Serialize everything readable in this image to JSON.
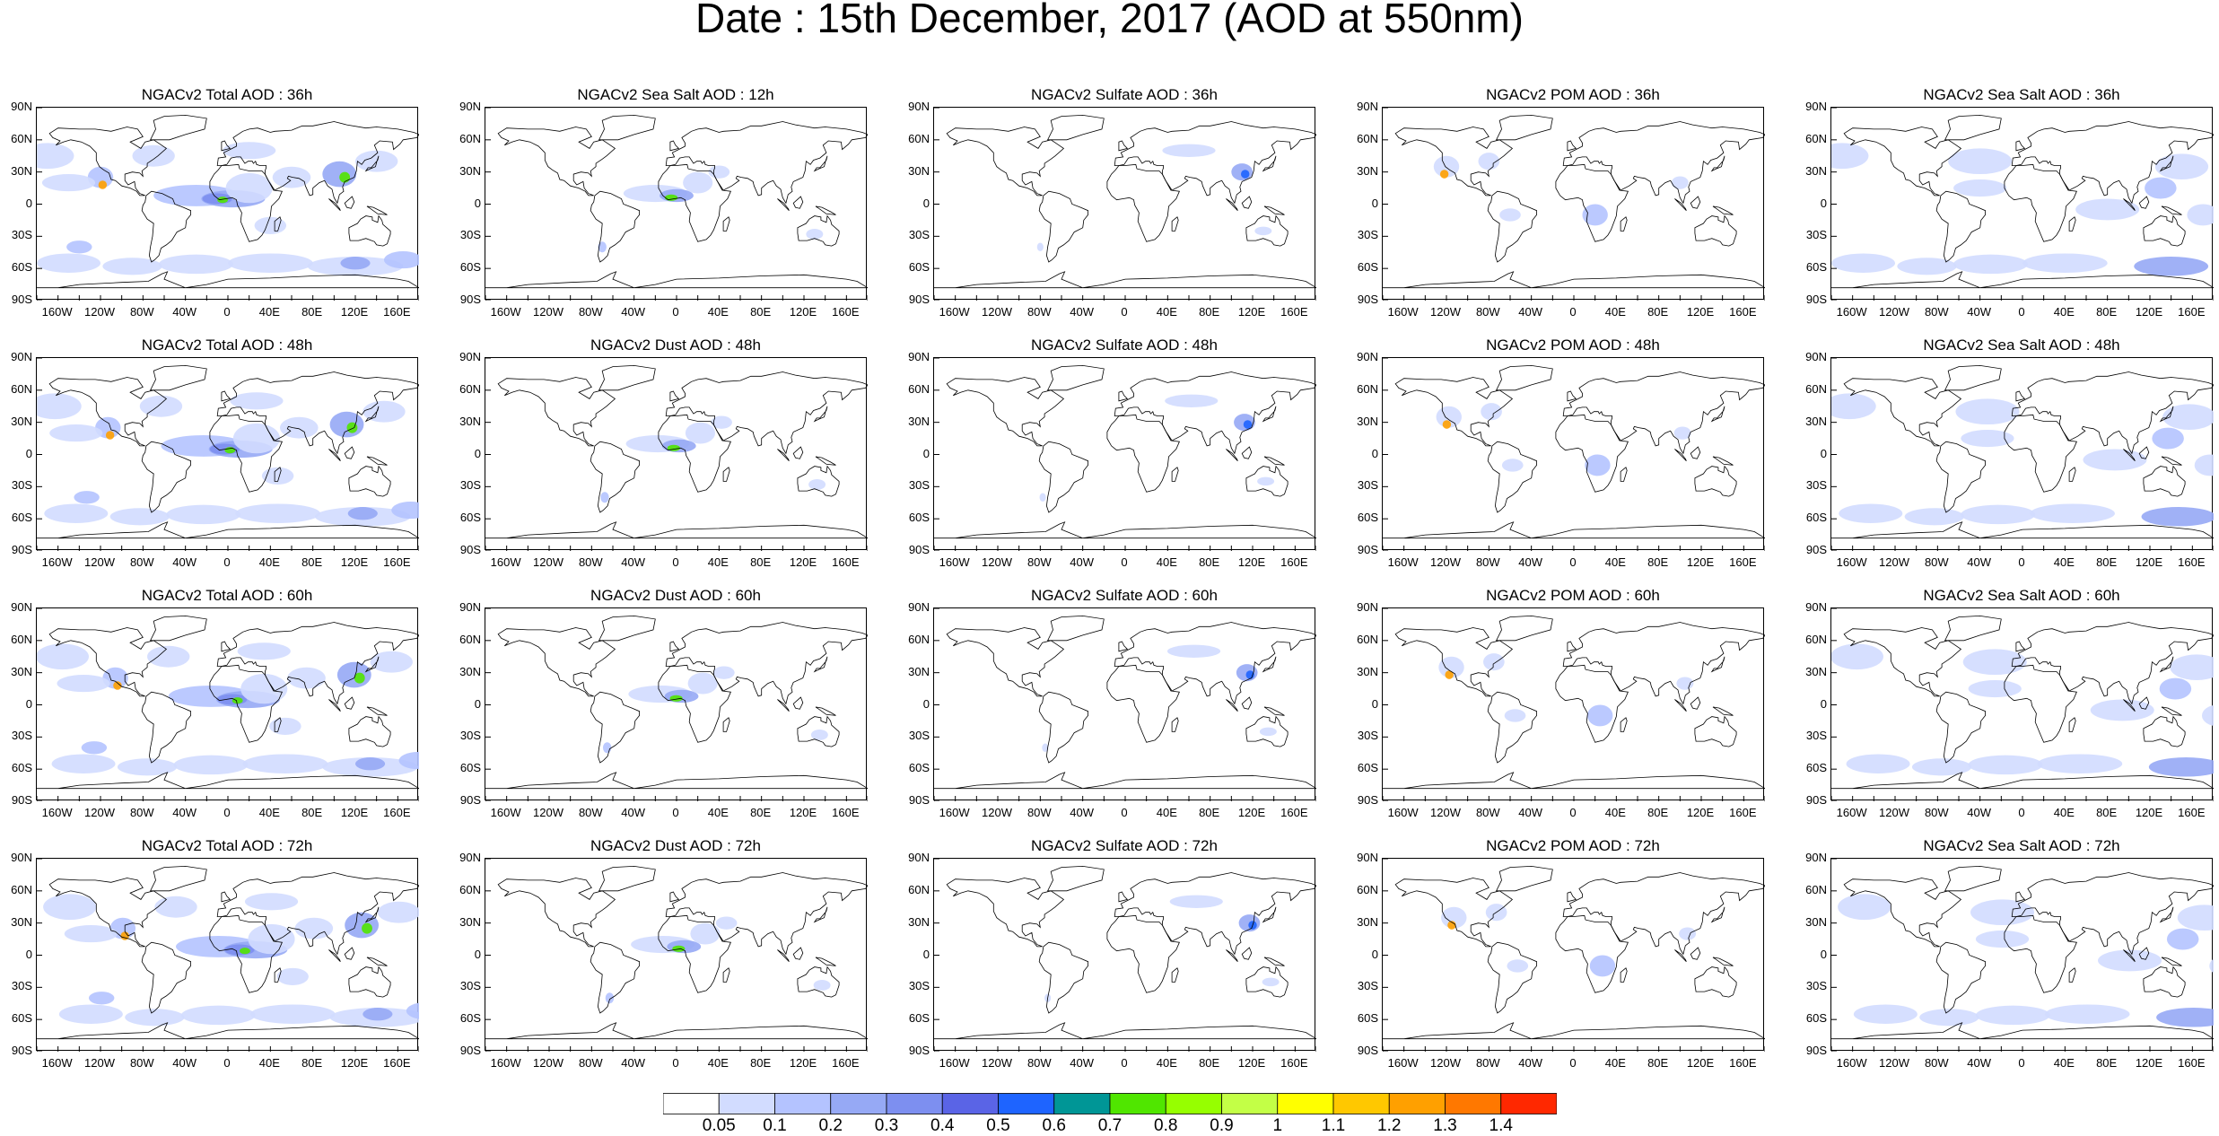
{
  "title": "Date : 15th December, 2017 (AOD at 550nm)",
  "panels": [
    [
      "NGACv2 Total AOD : 36h",
      "NGACv2 Sea Salt  AOD : 12h",
      "NGACv2 Sulfate AOD : 36h",
      "NGACv2 POM AOD : 36h",
      "NGACv2 Sea Salt AOD : 36h"
    ],
    [
      "NGACv2 Total AOD : 48h",
      "NGACv2 Dust AOD : 48h",
      "NGACv2 Sulfate AOD : 48h",
      "NGACv2 POM AOD : 48h",
      "NGACv2 Sea Salt AOD : 48h"
    ],
    [
      "NGACv2 Total AOD : 60h",
      "NGACv2 Dust AOD : 60h",
      "NGACv2 Sulfate AOD : 60h",
      "NGACv2 POM AOD : 60h",
      "NGACv2 Sea Salt AOD : 60h"
    ],
    [
      "NGACv2 Total AOD : 72h",
      "NGACv2 Dust AOD : 72h",
      "NGACv2 Sulfate AOD : 72h",
      "NGACv2 POM AOD : 72h",
      "NGACv2 Sea Salt  AOD : 72h"
    ]
  ],
  "map_axes": {
    "lat_ticks": [
      "90N",
      "60N",
      "30N",
      "0",
      "30S",
      "60S",
      "90S"
    ],
    "lon_ticks": [
      "160W",
      "120W",
      "80W",
      "40W",
      "0",
      "40E",
      "80E",
      "120E",
      "160E"
    ]
  },
  "colorbar": {
    "labels": [
      "0.05",
      "0.1",
      "0.2",
      "0.3",
      "0.4",
      "0.5",
      "0.6",
      "0.7",
      "0.8",
      "0.9",
      "1",
      "1.1",
      "1.2",
      "1.3",
      "1.4"
    ],
    "colors": [
      "#ffffff",
      "#d2dcff",
      "#b4c3ff",
      "#96a9f5",
      "#7d8ff0",
      "#5a64e6",
      "#1e64ff",
      "#009696",
      "#50e600",
      "#96ff00",
      "#c3ff46",
      "#ffff00",
      "#ffc800",
      "#ffa000",
      "#ff7800",
      "#ff2800"
    ]
  },
  "colors": {
    "land_outline": "#000000",
    "aod_low": "#c8d4ff",
    "aod_mid": "#8c9cf2",
    "aod_high": "#50e600"
  }
}
